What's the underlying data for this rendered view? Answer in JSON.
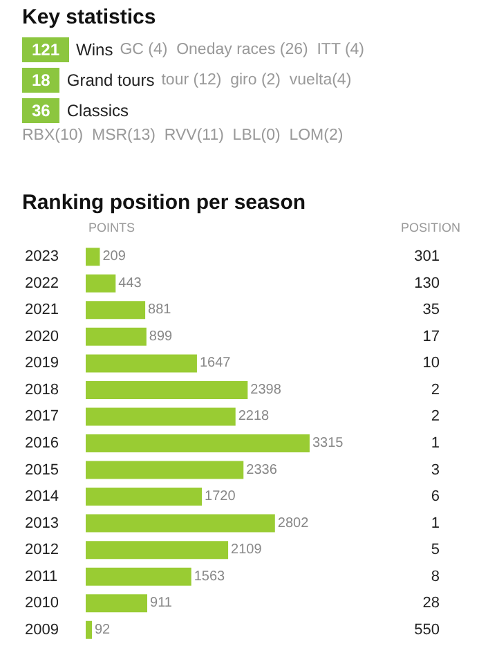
{
  "chart_data": [
    {
      "type": "other",
      "title": "Key statistics",
      "annotations": [
        "121",
        "Wins",
        "GC (4)  Oneday races (26)  ITT (4)",
        "18",
        "Grand tours",
        "tour (12)  giro (2)  vuelta(4)",
        "36",
        "Classics",
        "RBX(10)  MSR(13)  RVV(11)  LBL(0)  LOM(2)"
      ]
    },
    {
      "type": "bar",
      "orientation": "horizontal",
      "title": "Ranking position per season",
      "xlabel": "POINTS",
      "y2label": "POSITION",
      "categories": [
        "2023",
        "2022",
        "2021",
        "2020",
        "2019",
        "2018",
        "2017",
        "2016",
        "2015",
        "2014",
        "2013",
        "2012",
        "2011",
        "2010",
        "2009"
      ],
      "values": [
        209,
        443,
        881,
        899,
        1647,
        2398,
        2218,
        3315,
        2336,
        1720,
        2802,
        2109,
        1563,
        911,
        92
      ],
      "color": "#99cc33",
      "data_labels": true,
      "annotations": [
        "301",
        "130",
        "35",
        "17",
        "10",
        "2",
        "2",
        "1",
        "3",
        "6",
        "1",
        "5",
        "8",
        "28",
        "550"
      ]
    }
  ]
}
